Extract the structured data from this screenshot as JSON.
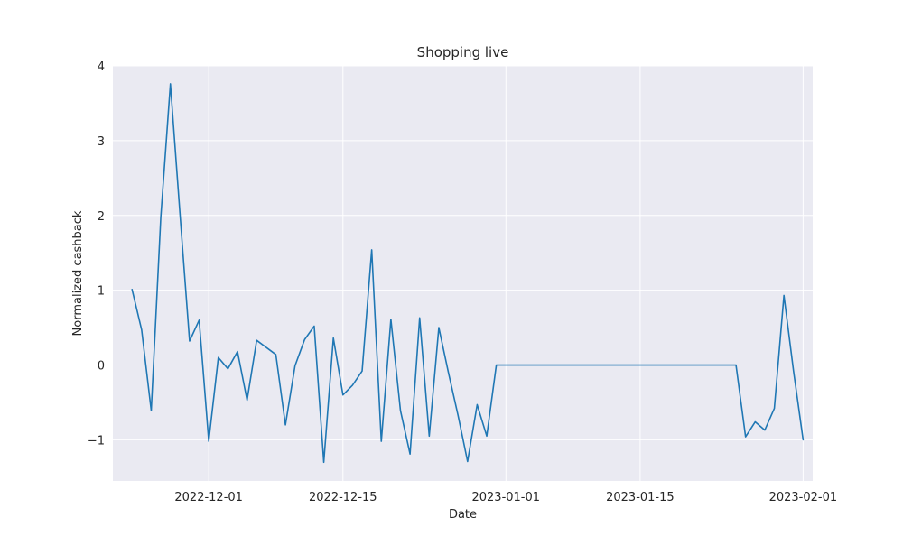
{
  "chart_data": {
    "type": "line",
    "title": "Shopping live",
    "xlabel": "Date",
    "ylabel": "Normalized cashback",
    "grid": true,
    "legend": "none",
    "x_axis_kind": "date",
    "xlim": [
      "2022-11-21",
      "2023-02-02"
    ],
    "ylim": [
      -1.55,
      4.0
    ],
    "x_ticks": [
      "2022-12-01",
      "2022-12-15",
      "2023-01-01",
      "2023-01-15",
      "2023-02-01"
    ],
    "y_ticks": [
      -1,
      0,
      1,
      2,
      3,
      4
    ],
    "y_tick_labels": [
      "−1",
      "0",
      "1",
      "2",
      "3",
      "4"
    ],
    "colors": {
      "plot_background": "#eaeaf2",
      "grid": "#ffffff",
      "line": "#1f77b4",
      "text": "#262626"
    },
    "series": [
      {
        "color": "#1f77b4",
        "points": [
          {
            "x": "2022-11-23",
            "y": 1.01
          },
          {
            "x": "2022-11-24",
            "y": 0.47
          },
          {
            "x": "2022-11-25",
            "y": -0.61
          },
          {
            "x": "2022-11-26",
            "y": 1.98
          },
          {
            "x": "2022-11-27",
            "y": 3.76
          },
          {
            "x": "2022-11-28",
            "y": 2.02
          },
          {
            "x": "2022-11-29",
            "y": 0.32
          },
          {
            "x": "2022-11-30",
            "y": 0.6
          },
          {
            "x": "2022-12-01",
            "y": -1.02
          },
          {
            "x": "2022-12-02",
            "y": 0.1
          },
          {
            "x": "2022-12-03",
            "y": -0.05
          },
          {
            "x": "2022-12-04",
            "y": 0.18
          },
          {
            "x": "2022-12-05",
            "y": -0.47
          },
          {
            "x": "2022-12-06",
            "y": 0.33
          },
          {
            "x": "2022-12-08",
            "y": 0.14
          },
          {
            "x": "2022-12-09",
            "y": -0.8
          },
          {
            "x": "2022-12-10",
            "y": -0.01
          },
          {
            "x": "2022-12-11",
            "y": 0.34
          },
          {
            "x": "2022-12-12",
            "y": 0.52
          },
          {
            "x": "2022-12-13",
            "y": -1.3
          },
          {
            "x": "2022-12-14",
            "y": 0.36
          },
          {
            "x": "2022-12-15",
            "y": -0.4
          },
          {
            "x": "2022-12-16",
            "y": -0.27
          },
          {
            "x": "2022-12-17",
            "y": -0.08
          },
          {
            "x": "2022-12-18",
            "y": 1.54
          },
          {
            "x": "2022-12-19",
            "y": -1.02
          },
          {
            "x": "2022-12-20",
            "y": 0.61
          },
          {
            "x": "2022-12-21",
            "y": -0.61
          },
          {
            "x": "2022-12-22",
            "y": -1.19
          },
          {
            "x": "2022-12-23",
            "y": 0.63
          },
          {
            "x": "2022-12-24",
            "y": -0.95
          },
          {
            "x": "2022-12-25",
            "y": 0.5
          },
          {
            "x": "2022-12-26",
            "y": -0.1
          },
          {
            "x": "2022-12-27",
            "y": -0.67
          },
          {
            "x": "2022-12-28",
            "y": -1.29
          },
          {
            "x": "2022-12-29",
            "y": -0.53
          },
          {
            "x": "2022-12-30",
            "y": -0.95
          },
          {
            "x": "2022-12-31",
            "y": 0.0
          },
          {
            "x": "2023-01-01",
            "y": 0.0
          },
          {
            "x": "2023-01-02",
            "y": 0.0
          },
          {
            "x": "2023-01-03",
            "y": 0.0
          },
          {
            "x": "2023-01-04",
            "y": 0.0
          },
          {
            "x": "2023-01-05",
            "y": 0.0
          },
          {
            "x": "2023-01-06",
            "y": 0.0
          },
          {
            "x": "2023-01-07",
            "y": 0.0
          },
          {
            "x": "2023-01-08",
            "y": 0.0
          },
          {
            "x": "2023-01-09",
            "y": 0.0
          },
          {
            "x": "2023-01-10",
            "y": 0.0
          },
          {
            "x": "2023-01-11",
            "y": 0.0
          },
          {
            "x": "2023-01-12",
            "y": 0.0
          },
          {
            "x": "2023-01-13",
            "y": 0.0
          },
          {
            "x": "2023-01-14",
            "y": 0.0
          },
          {
            "x": "2023-01-15",
            "y": 0.0
          },
          {
            "x": "2023-01-16",
            "y": 0.0
          },
          {
            "x": "2023-01-17",
            "y": 0.0
          },
          {
            "x": "2023-01-18",
            "y": 0.0
          },
          {
            "x": "2023-01-19",
            "y": 0.0
          },
          {
            "x": "2023-01-20",
            "y": 0.0
          },
          {
            "x": "2023-01-21",
            "y": 0.0
          },
          {
            "x": "2023-01-22",
            "y": 0.0
          },
          {
            "x": "2023-01-23",
            "y": 0.0
          },
          {
            "x": "2023-01-24",
            "y": 0.0
          },
          {
            "x": "2023-01-25",
            "y": 0.0
          },
          {
            "x": "2023-01-26",
            "y": -0.96
          },
          {
            "x": "2023-01-27",
            "y": -0.76
          },
          {
            "x": "2023-01-28",
            "y": -0.87
          },
          {
            "x": "2023-01-29",
            "y": -0.58
          },
          {
            "x": "2023-01-30",
            "y": 0.93
          },
          {
            "x": "2023-01-31",
            "y": -0.08
          },
          {
            "x": "2023-02-01",
            "y": -1.0
          }
        ]
      }
    ]
  }
}
